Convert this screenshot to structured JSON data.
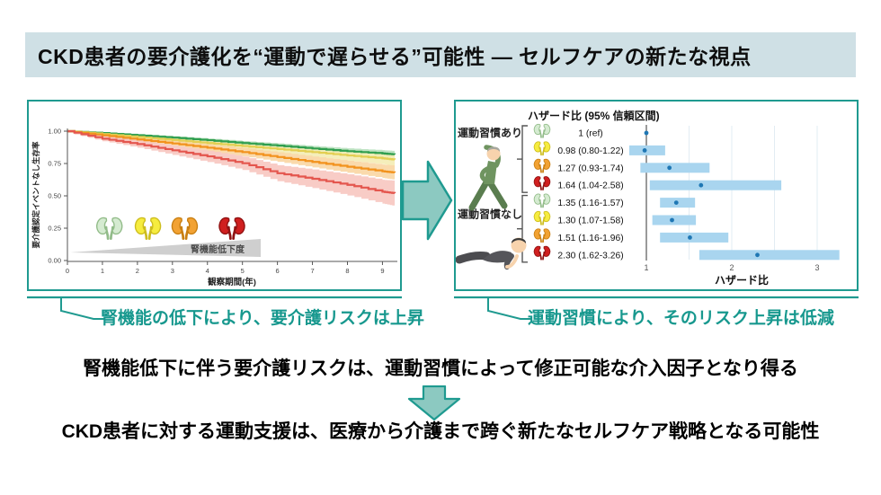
{
  "title_bar": {
    "title": "CKD患者の要介護化を“運動で遅らせる”可能性 ― セルフケアの新たな視点"
  },
  "left_panel": {
    "caption": "腎機能の低下により、要介護リスクは上昇"
  },
  "right_panel": {
    "caption": "運動習慣により、そのリスク上昇は低減"
  },
  "bottom": {
    "statement_top": "腎機能低下に伴う要介護リスクは、運動習慣によって修正可能な介入因子となり得る",
    "statement_bottom": "CKD患者に対する運動支援は、医療から介護まで跨ぐ新たなセルフケア戦略となる可能性"
  },
  "colors": {
    "title_bar_bg": "#cfe0e5",
    "accent_teal": "#1f9a90",
    "accent_teal_fill": "#8cc9c1",
    "caption_text": "#17988e",
    "forest_bar": "#a9d5ef",
    "forest_dot": "#1f77b4",
    "refline": "#808080",
    "gridline": "#e2ecf3",
    "wedge": "#cfcfcf",
    "kidney": {
      "green": {
        "fill": "#d5ebd1",
        "stroke": "#92bc89"
      },
      "yellow": {
        "fill": "#f6ec3f",
        "stroke": "#cdbd1e"
      },
      "orange": {
        "fill": "#f2a233",
        "stroke": "#c97f12"
      },
      "red": {
        "fill": "#d01f1f",
        "stroke": "#8f1212"
      }
    }
  },
  "chart_data": [
    {
      "type": "line",
      "subtype": "kaplan-meier",
      "title": "",
      "xlabel": "観察期間(年)",
      "ylabel": "要介護認定イベントなし生存率",
      "xlim": [
        0,
        9.4
      ],
      "ylim": [
        0,
        1.0
      ],
      "xticks": [
        0,
        1,
        2,
        3,
        4,
        5,
        6,
        7,
        8,
        9
      ],
      "yticks": [
        "1.00",
        "0.75",
        "0.50",
        "0.25",
        "0.00"
      ],
      "grid": false,
      "legend": "none",
      "annotation": {
        "wedge_label": "腎機能低下度"
      },
      "x": [
        0,
        1,
        2,
        3,
        4,
        5,
        6,
        7,
        8,
        9,
        9.35
      ],
      "series": [
        {
          "name": "kidney-function-best",
          "color": "#2f9e4f",
          "band_color": "#b7e0bd",
          "y": [
            1.0,
            0.985,
            0.968,
            0.95,
            0.93,
            0.908,
            0.888,
            0.866,
            0.845,
            0.828,
            0.82
          ],
          "band": [
            0.006,
            0.008,
            0.01,
            0.012,
            0.014,
            0.016,
            0.018,
            0.02,
            0.022,
            0.025,
            0.027
          ]
        },
        {
          "name": "kidney-function-mild",
          "color": "#e3cf52",
          "band_color": "#f4ecb4",
          "y": [
            1.0,
            0.978,
            0.955,
            0.932,
            0.908,
            0.885,
            0.862,
            0.838,
            0.812,
            0.79,
            0.78
          ],
          "band": [
            0.008,
            0.012,
            0.016,
            0.02,
            0.024,
            0.028,
            0.032,
            0.036,
            0.04,
            0.045,
            0.048
          ]
        },
        {
          "name": "kidney-function-moderate",
          "color": "#f2921d",
          "band_color": "#f9d6a3",
          "y": [
            1.0,
            0.968,
            0.936,
            0.905,
            0.872,
            0.838,
            0.8,
            0.762,
            0.725,
            0.69,
            0.68
          ],
          "band": [
            0.008,
            0.012,
            0.017,
            0.022,
            0.027,
            0.032,
            0.037,
            0.042,
            0.047,
            0.052,
            0.055
          ]
        },
        {
          "name": "kidney-function-severe",
          "color": "#e4564e",
          "band_color": "#f7c6c0",
          "y": [
            1.0,
            0.942,
            0.9,
            0.852,
            0.805,
            0.752,
            0.675,
            0.632,
            0.585,
            0.532,
            0.52
          ],
          "band": [
            0.012,
            0.02,
            0.028,
            0.036,
            0.044,
            0.052,
            0.062,
            0.072,
            0.082,
            0.092,
            0.098
          ]
        }
      ],
      "kidney_marker_x": [
        1.2,
        2.3,
        3.35,
        4.7
      ],
      "kidney_marker_order": [
        "green",
        "yellow",
        "orange",
        "red"
      ]
    },
    {
      "type": "forest",
      "header": "ハザード比 (95% 信頼区間)",
      "xlabel": "ハザード比",
      "xticks": [
        1,
        2,
        3
      ],
      "xlim": [
        0.75,
        3.4
      ],
      "refline": 1,
      "gridlines": [
        1.5,
        2,
        2.5,
        3
      ],
      "groups": [
        {
          "label": "運動習慣あり",
          "illustration": "exercising-person",
          "rows": [
            {
              "kidney": "green",
              "label": "1 (ref)",
              "est": 1.0,
              "lo": null,
              "hi": null
            },
            {
              "kidney": "yellow",
              "label": "0.98 (0.80-1.22)",
              "est": 0.98,
              "lo": 0.8,
              "hi": 1.22
            },
            {
              "kidney": "orange",
              "label": "1.27 (0.93-1.74)",
              "est": 1.27,
              "lo": 0.93,
              "hi": 1.74
            },
            {
              "kidney": "red",
              "label": "1.64 (1.04-2.58)",
              "est": 1.64,
              "lo": 1.04,
              "hi": 2.58
            }
          ]
        },
        {
          "label": "運動習慣なし",
          "illustration": "lying-person",
          "rows": [
            {
              "kidney": "green",
              "label": "1.35 (1.16-1.57)",
              "est": 1.35,
              "lo": 1.16,
              "hi": 1.57
            },
            {
              "kidney": "yellow",
              "label": "1.30 (1.07-1.58)",
              "est": 1.3,
              "lo": 1.07,
              "hi": 1.58
            },
            {
              "kidney": "orange",
              "label": "1.51 (1.16-1.96)",
              "est": 1.51,
              "lo": 1.16,
              "hi": 1.96
            },
            {
              "kidney": "red",
              "label": "2.30 (1.62-3.26)",
              "est": 2.3,
              "lo": 1.62,
              "hi": 3.26
            }
          ]
        }
      ]
    }
  ]
}
